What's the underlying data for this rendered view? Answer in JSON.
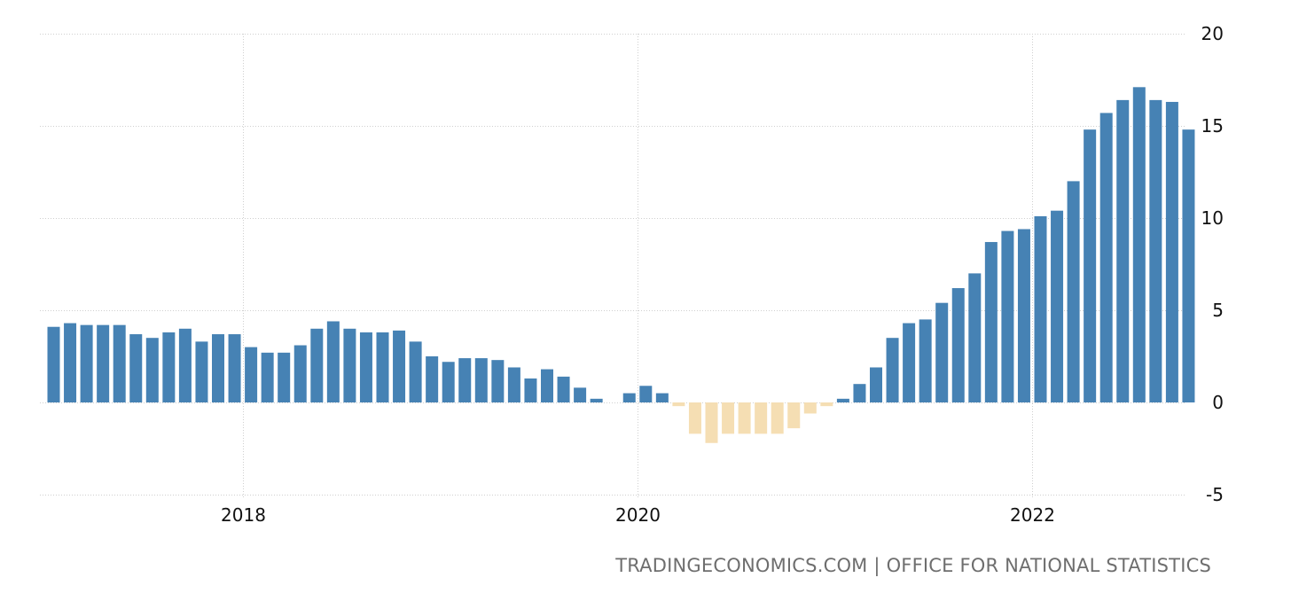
{
  "source": {
    "site": "TRADINGECONOMICS.COM",
    "separator": "|",
    "agency": "OFFICE FOR NATIONAL STATISTICS"
  },
  "chart_data": {
    "type": "bar",
    "title": "",
    "xlabel": "",
    "ylabel": "",
    "ylim": [
      -5,
      20
    ],
    "yticks": [
      20,
      15,
      10,
      5,
      0,
      -5
    ],
    "xticks": [
      "2018",
      "2020",
      "2022"
    ],
    "xtick_positions_in_bars": [
      12,
      36,
      60
    ],
    "colors": {
      "positive": "#4682b4",
      "negative": "#f5deb3",
      "grid": "#cfcfcf"
    },
    "categories": [
      "2017-01",
      "2017-02",
      "2017-03",
      "2017-04",
      "2017-05",
      "2017-06",
      "2017-07",
      "2017-08",
      "2017-09",
      "2017-10",
      "2017-11",
      "2017-12",
      "2018-01",
      "2018-02",
      "2018-03",
      "2018-04",
      "2018-05",
      "2018-06",
      "2018-07",
      "2018-08",
      "2018-09",
      "2018-10",
      "2018-11",
      "2018-12",
      "2019-01",
      "2019-02",
      "2019-03",
      "2019-04",
      "2019-05",
      "2019-06",
      "2019-07",
      "2019-08",
      "2019-09",
      "2019-10",
      "2019-11",
      "2019-12",
      "2020-01",
      "2020-02",
      "2020-03",
      "2020-04",
      "2020-05",
      "2020-06",
      "2020-07",
      "2020-08",
      "2020-09",
      "2020-10",
      "2020-11",
      "2020-12",
      "2021-01",
      "2021-02",
      "2021-03",
      "2021-04",
      "2021-05",
      "2021-06",
      "2021-07",
      "2021-08",
      "2021-09",
      "2021-10",
      "2021-11",
      "2021-12",
      "2022-01",
      "2022-02",
      "2022-03",
      "2022-04",
      "2022-05",
      "2022-06",
      "2022-07",
      "2022-08",
      "2022-09",
      "2022-10"
    ],
    "values": [
      4.1,
      4.3,
      4.2,
      4.2,
      4.2,
      3.7,
      3.5,
      3.8,
      4.0,
      3.3,
      3.7,
      3.7,
      3.0,
      2.7,
      2.7,
      3.1,
      4.0,
      4.4,
      4.0,
      3.8,
      3.8,
      3.9,
      3.3,
      2.5,
      2.2,
      2.4,
      2.4,
      2.3,
      1.9,
      1.3,
      1.8,
      1.4,
      0.8,
      0.2,
      0.0,
      0.5,
      0.9,
      0.5,
      -0.2,
      -1.7,
      -2.2,
      -1.7,
      -1.7,
      -1.7,
      -1.7,
      -1.4,
      -0.6,
      -0.2,
      0.2,
      1.0,
      1.9,
      3.5,
      4.3,
      4.5,
      5.4,
      6.2,
      7.0,
      8.7,
      9.3,
      9.4,
      10.1,
      10.4,
      12.0,
      14.8,
      15.7,
      16.4,
      17.1,
      16.4,
      16.3,
      14.8
    ]
  }
}
